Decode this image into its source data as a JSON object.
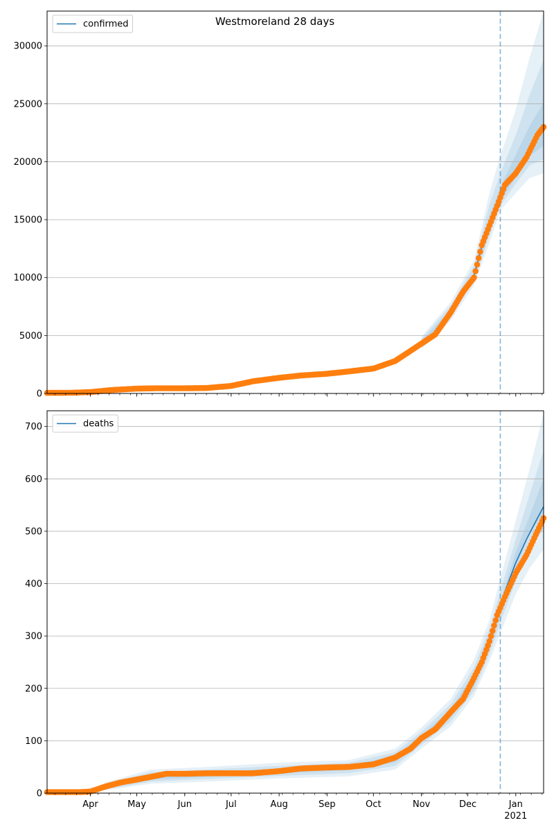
{
  "figure": {
    "title": "Westmoreland 28 days"
  },
  "colors": {
    "model": "#1f77b4",
    "observed": "#ff7f0e",
    "band": "#1f77b4",
    "grid": "#b0b0b0",
    "vline": "#1f77b4"
  },
  "chart_data": [
    {
      "type": "line",
      "legend": [
        "confirmed"
      ],
      "legend_position": "top-left",
      "grid": "horizontal",
      "xlim": [
        "2020-03-04",
        "2021-01-19"
      ],
      "ylim": [
        0,
        33000
      ],
      "yticks": [
        0,
        5000,
        10000,
        15000,
        20000,
        25000,
        30000
      ],
      "xticks": [],
      "forecast_start": "2020-12-22",
      "observed": {
        "x": [
          "2020-03-04",
          "2020-03-20",
          "2020-04-01",
          "2020-04-15",
          "2020-05-01",
          "2020-05-15",
          "2020-06-01",
          "2020-06-15",
          "2020-07-01",
          "2020-07-15",
          "2020-08-01",
          "2020-08-15",
          "2020-09-01",
          "2020-09-15",
          "2020-10-01",
          "2020-10-15",
          "2020-11-01",
          "2020-11-10",
          "2020-11-20",
          "2020-11-28",
          "2020-12-05",
          "2020-12-10",
          "2020-12-15",
          "2020-12-20",
          "2020-12-25",
          "2021-01-01",
          "2021-01-08",
          "2021-01-15",
          "2021-01-19"
        ],
        "y": [
          50,
          60,
          120,
          300,
          420,
          450,
          450,
          470,
          650,
          1050,
          1350,
          1550,
          1700,
          1900,
          2150,
          2800,
          4300,
          5100,
          7000,
          8800,
          10000,
          12800,
          14500,
          16200,
          18000,
          19000,
          20400,
          22300,
          23000
        ]
      },
      "model": {
        "x": [
          "2020-03-04",
          "2020-03-20",
          "2020-04-01",
          "2020-04-15",
          "2020-05-01",
          "2020-05-15",
          "2020-06-01",
          "2020-06-15",
          "2020-07-01",
          "2020-07-15",
          "2020-08-01",
          "2020-08-15",
          "2020-09-01",
          "2020-09-15",
          "2020-10-01",
          "2020-10-15",
          "2020-11-01",
          "2020-11-10",
          "2020-11-20",
          "2020-11-28",
          "2020-12-05",
          "2020-12-10",
          "2020-12-15",
          "2020-12-20",
          "2020-12-25",
          "2021-01-01",
          "2021-01-08",
          "2021-01-15",
          "2021-01-19"
        ],
        "y": [
          50,
          60,
          120,
          300,
          420,
          450,
          450,
          470,
          650,
          1050,
          1350,
          1550,
          1700,
          1900,
          2150,
          2800,
          4300,
          5150,
          7000,
          8900,
          10200,
          12700,
          14500,
          16200,
          17700,
          19200,
          20500,
          22300,
          23000
        ]
      },
      "bands": [
        {
          "x": [
            "2020-11-01",
            "2020-11-20",
            "2020-12-05",
            "2020-12-15",
            "2020-12-22",
            "2021-01-01",
            "2021-01-10",
            "2021-01-19"
          ],
          "lower": [
            3800,
            6300,
            9300,
            13000,
            15800,
            17300,
            18600,
            19000
          ],
          "upper": [
            4900,
            7900,
            11500,
            17300,
            20500,
            24500,
            29000,
            33000
          ]
        },
        {
          "x": [
            "2020-11-01",
            "2020-11-20",
            "2020-12-05",
            "2020-12-15",
            "2020-12-22",
            "2021-01-01",
            "2021-01-10",
            "2021-01-19"
          ],
          "lower": [
            4000,
            6600,
            9700,
            13600,
            16200,
            18100,
            19700,
            20200
          ],
          "upper": [
            4700,
            7600,
            11000,
            16300,
            19000,
            22300,
            25800,
            28800
          ]
        },
        {
          "x": [
            "2020-11-01",
            "2020-11-20",
            "2020-12-05",
            "2020-12-15",
            "2020-12-22",
            "2021-01-01",
            "2021-01-10",
            "2021-01-19"
          ],
          "lower": [
            4150,
            6850,
            10000,
            14100,
            16600,
            18700,
            20500,
            21400
          ],
          "upper": [
            4500,
            7250,
            10500,
            15300,
            17800,
            20600,
            23100,
            25100
          ]
        }
      ]
    },
    {
      "type": "line",
      "legend": [
        "deaths"
      ],
      "legend_position": "top-left",
      "grid": "horizontal",
      "xlim": [
        "2020-03-04",
        "2021-01-19"
      ],
      "ylim": [
        0,
        730
      ],
      "yticks": [
        0,
        100,
        200,
        300,
        400,
        500,
        600,
        700
      ],
      "xticks": [
        "Apr",
        "May",
        "Jun",
        "Jul",
        "Aug",
        "Sep",
        "Oct",
        "Nov",
        "Dec",
        "Jan"
      ],
      "xtick_dates": [
        "2020-04-01",
        "2020-05-01",
        "2020-06-01",
        "2020-07-01",
        "2020-08-01",
        "2020-09-01",
        "2020-10-01",
        "2020-11-01",
        "2020-12-01",
        "2021-01-01"
      ],
      "x_sublabel": "2021",
      "forecast_start": "2020-12-22",
      "observed": {
        "x": [
          "2020-03-04",
          "2020-03-25",
          "2020-04-01",
          "2020-04-10",
          "2020-04-20",
          "2020-05-01",
          "2020-05-10",
          "2020-05-20",
          "2020-06-01",
          "2020-06-15",
          "2020-07-01",
          "2020-07-15",
          "2020-08-01",
          "2020-08-15",
          "2020-09-01",
          "2020-09-15",
          "2020-10-01",
          "2020-10-15",
          "2020-10-25",
          "2020-11-01",
          "2020-11-10",
          "2020-11-20",
          "2020-11-28",
          "2020-12-05",
          "2020-12-10",
          "2020-12-15",
          "2020-12-20",
          "2020-12-25",
          "2021-01-01",
          "2021-01-08",
          "2021-01-15",
          "2021-01-19"
        ],
        "y": [
          2,
          2,
          3,
          12,
          20,
          26,
          31,
          37,
          37,
          38,
          38,
          38,
          42,
          47,
          49,
          50,
          55,
          68,
          85,
          105,
          122,
          155,
          180,
          220,
          250,
          290,
          340,
          375,
          420,
          455,
          500,
          525
        ]
      },
      "model": {
        "x": [
          "2020-03-04",
          "2020-03-25",
          "2020-04-01",
          "2020-04-10",
          "2020-04-20",
          "2020-05-01",
          "2020-05-10",
          "2020-05-20",
          "2020-06-01",
          "2020-06-15",
          "2020-07-01",
          "2020-07-15",
          "2020-08-01",
          "2020-08-15",
          "2020-09-01",
          "2020-09-15",
          "2020-10-01",
          "2020-10-15",
          "2020-10-25",
          "2020-11-01",
          "2020-11-10",
          "2020-11-20",
          "2020-11-28",
          "2020-12-05",
          "2020-12-10",
          "2020-12-15",
          "2020-12-20",
          "2020-12-25",
          "2021-01-01",
          "2021-01-08",
          "2021-01-15",
          "2021-01-19"
        ],
        "y": [
          2,
          2,
          3,
          12,
          20,
          26,
          31,
          35,
          36,
          37,
          38,
          39,
          43,
          47,
          49,
          50,
          55,
          67,
          85,
          105,
          123,
          152,
          178,
          216,
          248,
          288,
          335,
          385,
          440,
          485,
          525,
          547
        ]
      },
      "bands": [
        {
          "x": [
            "2020-04-10",
            "2020-05-10",
            "2020-06-15",
            "2020-08-01",
            "2020-09-15",
            "2020-10-15",
            "2020-11-01",
            "2020-11-20",
            "2020-12-05",
            "2020-12-15",
            "2020-12-22",
            "2021-01-01",
            "2021-01-10",
            "2021-01-19"
          ],
          "lower": [
            5,
            18,
            22,
            28,
            32,
            45,
            85,
            128,
            185,
            252,
            305,
            380,
            430,
            465
          ],
          "upper": [
            20,
            45,
            50,
            58,
            63,
            85,
            125,
            180,
            255,
            330,
            410,
            520,
            620,
            725
          ]
        },
        {
          "x": [
            "2020-04-10",
            "2020-05-10",
            "2020-06-15",
            "2020-08-01",
            "2020-09-15",
            "2020-10-15",
            "2020-11-01",
            "2020-11-20",
            "2020-12-05",
            "2020-12-15",
            "2020-12-22",
            "2021-01-01",
            "2021-01-10",
            "2021-01-19"
          ],
          "lower": [
            7,
            22,
            27,
            33,
            38,
            52,
            92,
            137,
            195,
            265,
            325,
            405,
            465,
            505
          ],
          "upper": [
            17,
            40,
            45,
            52,
            58,
            78,
            117,
            170,
            240,
            315,
            385,
            485,
            570,
            655
          ]
        },
        {
          "x": [
            "2020-04-10",
            "2020-05-10",
            "2020-06-15",
            "2020-08-01",
            "2020-09-15",
            "2020-10-15",
            "2020-11-01",
            "2020-11-20",
            "2020-12-05",
            "2020-12-15",
            "2020-12-22",
            "2021-01-01",
            "2021-01-10",
            "2021-01-19"
          ],
          "lower": [
            9,
            26,
            31,
            38,
            44,
            59,
            98,
            145,
            205,
            275,
            345,
            430,
            495,
            535
          ],
          "upper": [
            14,
            35,
            40,
            47,
            53,
            71,
            110,
            160,
            228,
            300,
            365,
            460,
            530,
            600
          ]
        }
      ]
    }
  ]
}
